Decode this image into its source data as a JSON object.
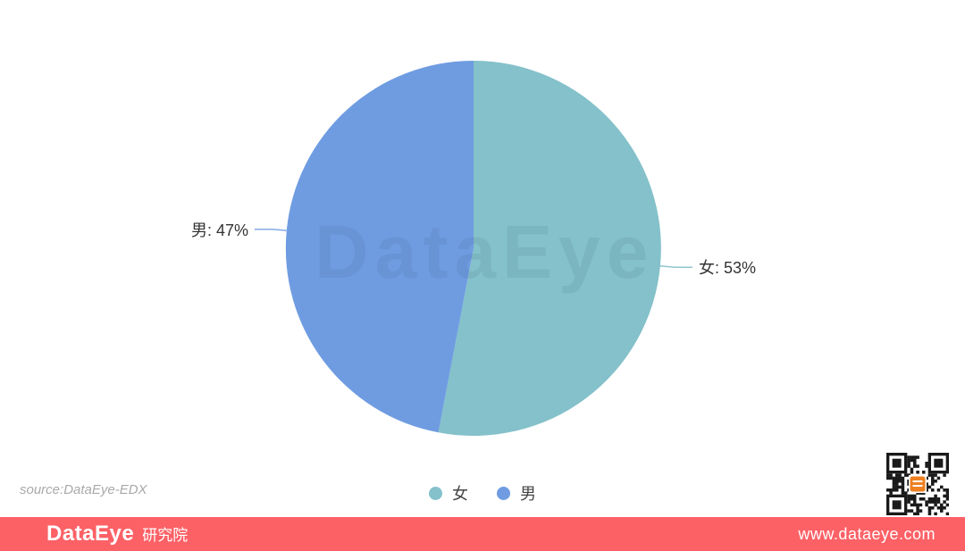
{
  "page": {
    "watermark": "DataEye",
    "source_note": "source:DataEye-EDX"
  },
  "legend": {
    "items": [
      {
        "label": "女",
        "color": "#84C1CA"
      },
      {
        "label": "男",
        "color": "#6F9CE1"
      }
    ]
  },
  "footer": {
    "brand": "DataEye",
    "brand_suffix": "研究院",
    "website": "www.dataeye.com",
    "background": "#FC6166"
  },
  "chart_data": {
    "type": "pie",
    "title": "",
    "categories": [
      "女",
      "男"
    ],
    "values": [
      53,
      47
    ],
    "unit": "%",
    "colors": [
      "#84C1CA",
      "#6F9CE1"
    ],
    "slice_labels": [
      "女: 53%",
      "男: 47%"
    ],
    "leader_line_colors": [
      "#8FC6CE",
      "#85A9E6"
    ],
    "legend_position": "bottom",
    "start_angle_deg": 90,
    "direction": "clockwise"
  }
}
